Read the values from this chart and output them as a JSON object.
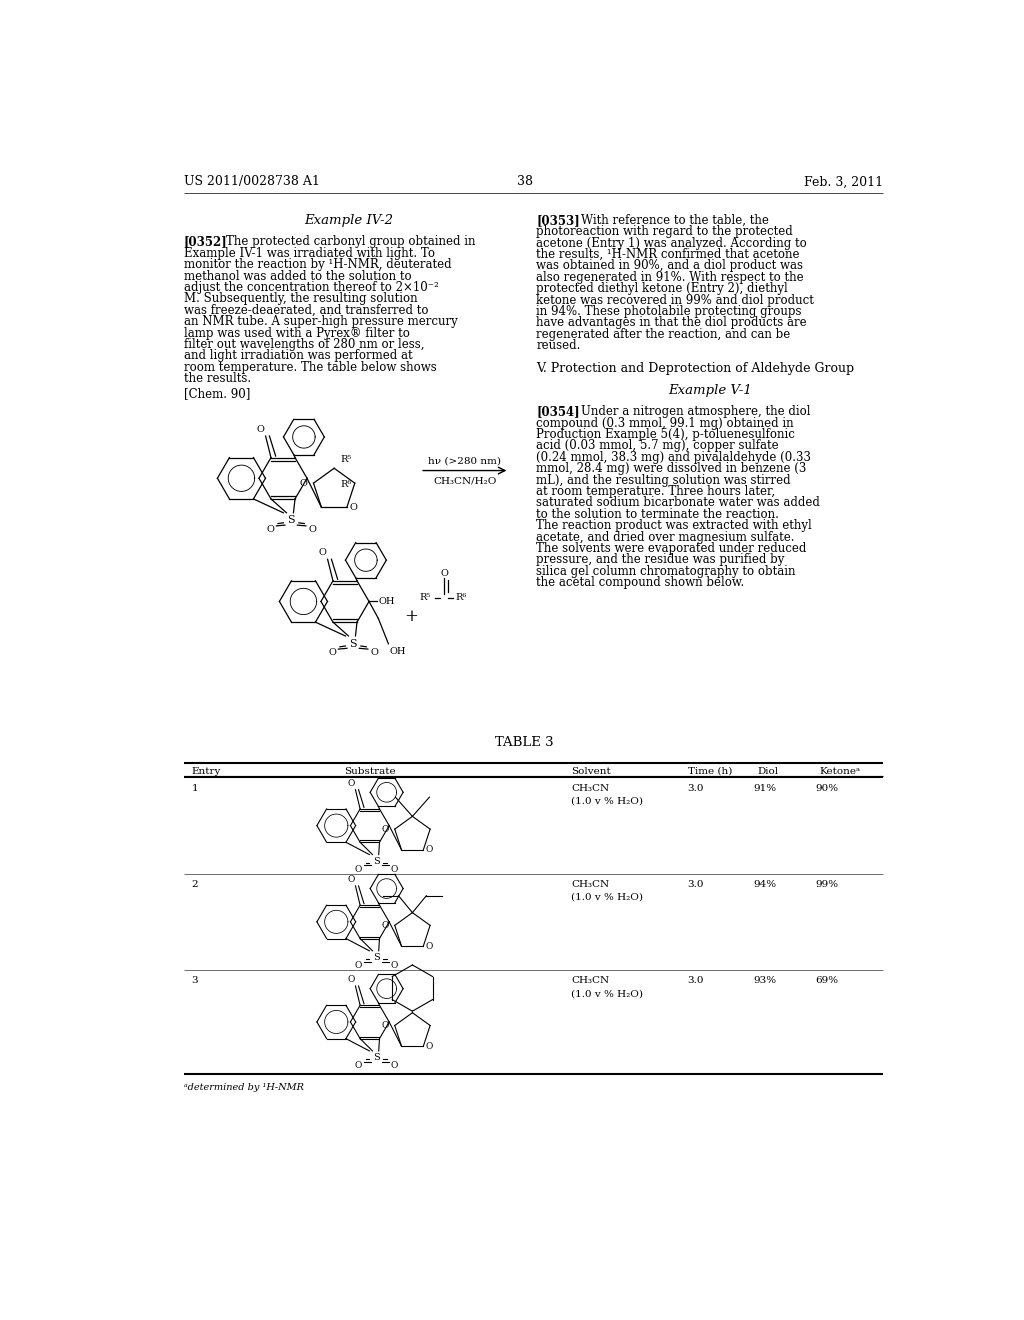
{
  "background_color": "#ffffff",
  "page_width": 10.24,
  "page_height": 13.2,
  "header_left": "US 2011/0028738 A1",
  "header_right": "Feb. 3, 2011",
  "header_center": "38",
  "example_iv2_title": "Example IV-2",
  "para_0352_tag": "[0352]",
  "para_0352_text": "The protected carbonyl group obtained in Example IV-1 was irradiated with light. To monitor the reaction by ¹H-NMR, deuterated methanol was added to the solution to adjust the concentration thereof to 2×10⁻² M. Subsequently, the resulting solution was freeze-deaerated, and transferred to an NMR tube. A super-high pressure mercury lamp was used with a Pyrex® filter to filter out wavelengths of 280 nm or less, and light irradiation was performed at room temperature. The table below shows the results.",
  "chem90_label": "[Chem. 90]",
  "arrow_label": "hν (>280 nm)",
  "arrow_sublabel": "CH₃CN/H₂O",
  "para_0353_tag": "[0353]",
  "para_0353_text": "With reference to the table, the photoreaction with regard to the protected acetone (Entry 1) was analyzed. According to the results, ¹H-NMR confirmed that acetone was obtained in 90%, and a diol product was also regenerated in 91%. With respect to the protected diethyl ketone (Entry 2), diethyl ketone was recovered in 99% and diol product in 94%. These photolabile protecting groups have advantages in that the diol products are regenerated after the reaction, and can be reused.",
  "section_v_title": "V. Protection and Deprotection of Aldehyde Group",
  "example_v1_title": "Example V-1",
  "para_0354_tag": "[0354]",
  "para_0354_text": "Under a nitrogen atmosphere, the diol compound (0.3 mmol, 99.1 mg) obtained in Production Example 5(4), p-toluenesulfonic acid (0.03 mmol, 5.7 mg), copper sulfate (0.24 mmol, 38.3 mg) and pivalaldehyde (0.33 mmol, 28.4 mg) were dissolved in benzene (3 mL), and the resulting solution was stirred at room temperature. Three hours later, saturated sodium bicarbonate water was added to the solution to terminate the reaction. The reaction product was extracted with ethyl acetate, and dried over magnesium sulfate. The solvents were evaporated under reduced pressure, and the residue was purified by silica gel column chromatography to obtain the acetal compound shown below.",
  "table3_title": "TABLE 3",
  "table3_headers": [
    "Entry",
    "Substrate",
    "Solvent",
    "Time (h)",
    "Diol",
    "Ketoneᵃ"
  ],
  "table3_rows": [
    {
      "entry": "1",
      "solvent": "CH₃CN",
      "solvent2": "(1.0 v % H₂O)",
      "time": "3.0",
      "diol": "91%",
      "ketone": "90%"
    },
    {
      "entry": "2",
      "solvent": "CH₃CN",
      "solvent2": "(1.0 v % H₂O)",
      "time": "3.0",
      "diol": "94%",
      "ketone": "99%"
    },
    {
      "entry": "3",
      "solvent": "CH₃CN",
      "solvent2": "(1.0 v % H₂O)",
      "time": "3.0",
      "diol": "93%",
      "ketone": "69%"
    }
  ],
  "footnote": "ᵃdetermined by ¹H-NMR",
  "font_size_body": 8.5,
  "font_size_small": 7.5,
  "font_size_header": 9.0,
  "font_size_title": 9.5,
  "font_size_chem": 7.0
}
